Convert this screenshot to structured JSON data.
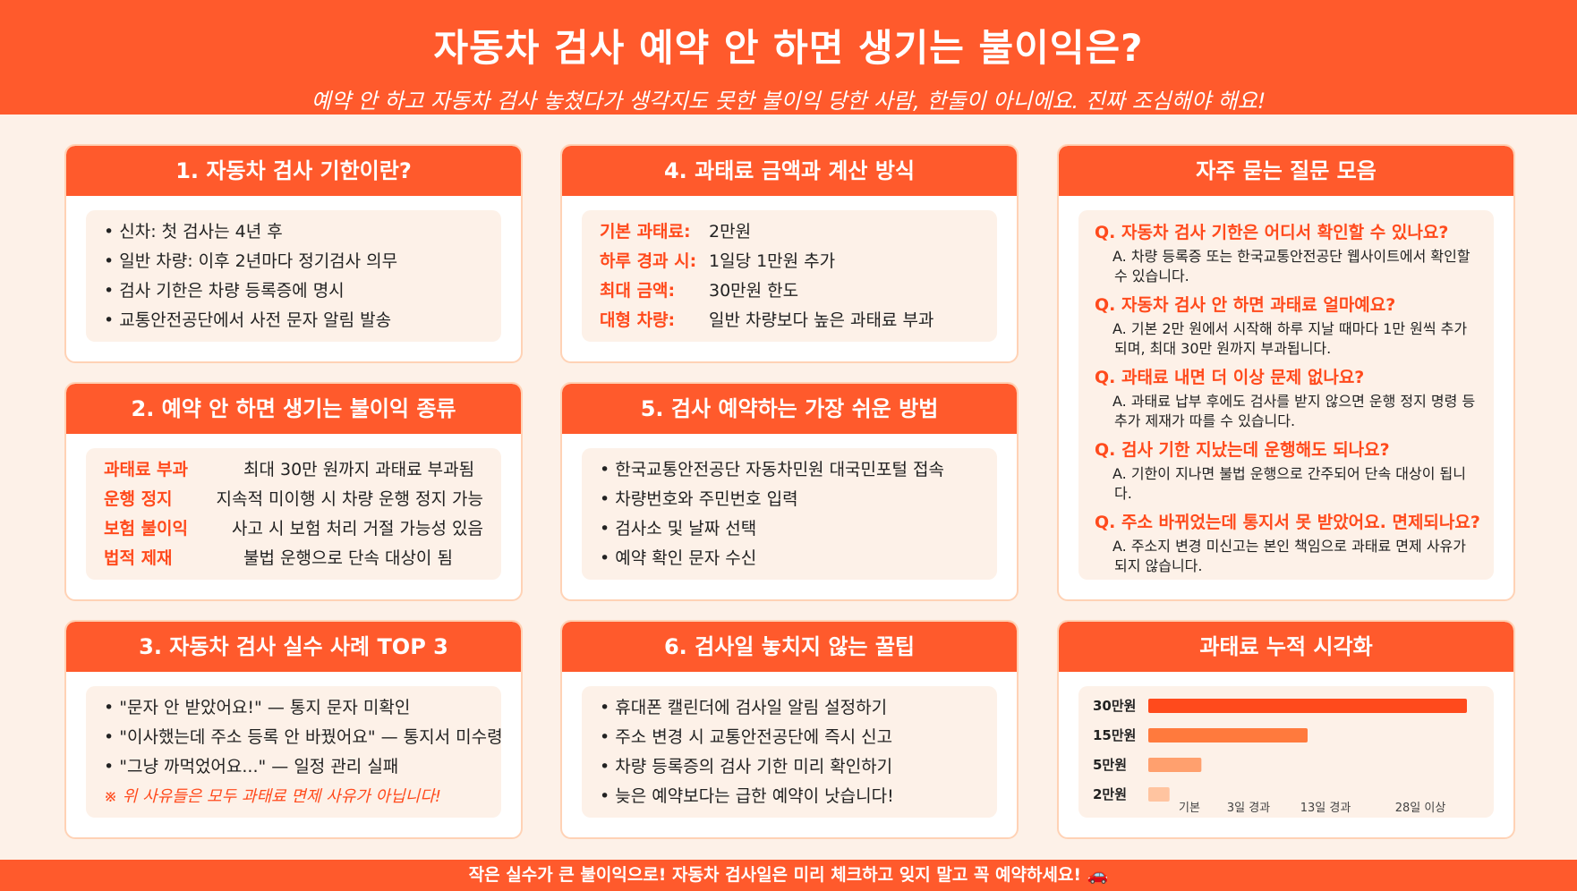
{
  "header": {
    "title": "자동차 검사 예약 안 하면 생기는 불이익은?",
    "subtitle": "예약 안 하고 자동차 검사 놓쳤다가 생각지도 못한 불이익 당한 사람, 한둘이 아니에요. 진짜 조심해야 해요!"
  },
  "card1": {
    "title": "1. 자동차 검사 기한이란?",
    "items": [
      "신차: 첫 검사는 4년 후",
      "일반 차량: 이후 2년마다 정기검사 의무",
      "검사 기한은 차량 등록증에 명시",
      "교통안전공단에서 사전 문자 알림 발송"
    ]
  },
  "card2": {
    "title": "2. 예약 안 하면 생기는 불이익 종류",
    "rows": [
      {
        "k": "과태료 부과",
        "v": "최대 30만 원까지 과태료 부과됨"
      },
      {
        "k": "운행 정지",
        "v": "지속적 미이행 시 차량 운행 정지 가능"
      },
      {
        "k": "보험 불이익",
        "v": "사고 시 보험 처리 거절 가능성 있음"
      },
      {
        "k": "법적 제재",
        "v": "불법 운행으로 단속 대상이 됨"
      }
    ]
  },
  "card3": {
    "title": "3. 자동차 검사 실수 사례 TOP 3",
    "items": [
      "\"문자 안 받았어요!\" — 통지 문자 미확인",
      "\"이사했는데 주소 등록 안 바꿨어요\" — 통지서 미수령",
      "\"그냥 까먹었어요...\" — 일정 관리 실패"
    ],
    "warning": "※ 위 사유들은 모두 과태료 면제 사유가 아닙니다!"
  },
  "card4": {
    "title": "4. 과태료 금액과 계산 방식",
    "rows": [
      {
        "k": "기본 과태료:",
        "v": "2만원"
      },
      {
        "k": "하루 경과 시:",
        "v": "1일당 1만원 추가"
      },
      {
        "k": "최대 금액:",
        "v": "30만원 한도"
      },
      {
        "k": "대형 차량:",
        "v": "일반 차량보다 높은 과태료 부과"
      }
    ]
  },
  "card5": {
    "title": "5. 검사 예약하는 가장 쉬운 방법",
    "items": [
      "한국교통안전공단 자동차민원 대국민포털 접속",
      "차량번호와 주민번호 입력",
      "검사소 및 날짜 선택",
      "예약 확인 문자 수신"
    ]
  },
  "card6": {
    "title": "6. 검사일 놓치지 않는 꿀팁",
    "items": [
      "휴대폰 캘린더에 검사일 알림 설정하기",
      "주소 변경 시 교통안전공단에 즉시 신고",
      "차량 등록증의 검사 기한 미리 확인하기",
      "늦은 예약보다는 급한 예약이 낫습니다!"
    ]
  },
  "faq": {
    "title": "자주 묻는 질문 모음",
    "items": [
      {
        "q": "Q. 자동차 검사 기한은 어디서 확인할 수 있나요?",
        "a": "A. 차량 등록증 또는 한국교통안전공단 웹사이트에서 확인할 수 있습니다."
      },
      {
        "q": "Q. 자동차 검사 안 하면 과태료 얼마예요?",
        "a": "A. 기본 2만 원에서 시작해 하루 지날 때마다 1만 원씩 추가되며, 최대 30만 원까지 부과됩니다."
      },
      {
        "q": "Q. 과태료 내면 더 이상 문제 없나요?",
        "a": "A. 과태료 납부 후에도 검사를 받지 않으면 운행 정지 명령 등 추가 제재가 따를 수 있습니다."
      },
      {
        "q": "Q. 검사 기한 지났는데 운행해도 되나요?",
        "a": "A. 기한이 지나면 불법 운행으로 간주되어 단속 대상이 됩니다."
      },
      {
        "q": "Q. 주소 바뀌었는데 통지서 못 받았어요. 면제되나요?",
        "a": "A. 주소지 변경 미신고는 본인 책임으로 과태료 면제 사유가 되지 않습니다."
      }
    ]
  },
  "chart_card": {
    "title": "과태료 누적 시각화"
  },
  "chart_data": {
    "type": "bar",
    "orientation": "horizontal",
    "categories": [
      "30만원",
      "15만원",
      "5만원",
      "2만원"
    ],
    "values": [
      30,
      15,
      5,
      2
    ],
    "x_ticks": [
      "기본",
      "3일 경과",
      "13일 경과",
      "28일 이상"
    ],
    "xlim": [
      0,
      30
    ],
    "colors": [
      "#ff4a1c",
      "#ff7a3d",
      "#ffa06e",
      "#ffc4a0"
    ]
  },
  "footer": {
    "text": "작은 실수가 큰 불이익으로! 자동차 검사일은 미리 체크하고 잊지 말고 꼭 예약하세요! 🚗"
  }
}
